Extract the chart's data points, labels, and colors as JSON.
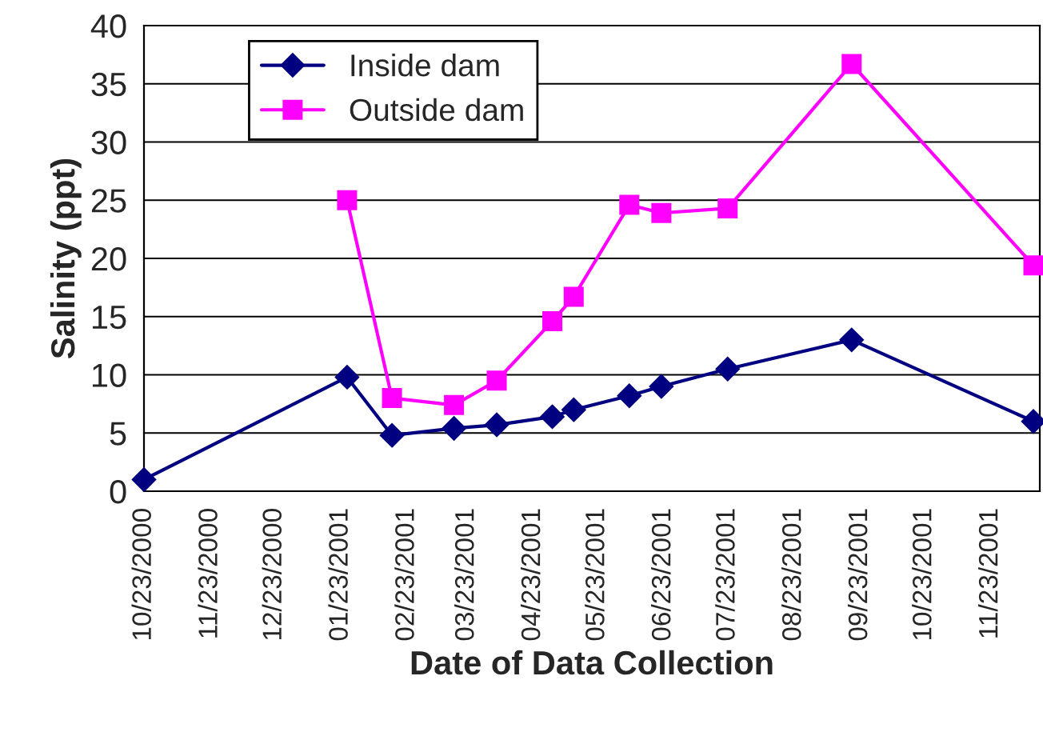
{
  "chart_data": {
    "type": "line",
    "xlabel": "Date of Data Collection",
    "ylabel": "Salinity (ppt)",
    "series": [
      {
        "name": "Inside dam",
        "color": "#000080",
        "marker": "diamond",
        "x": [
          "2000-10-23",
          "2001-01-26",
          "2001-02-16",
          "2001-03-17",
          "2001-04-06",
          "2001-05-02",
          "2001-05-12",
          "2001-06-07",
          "2001-06-22",
          "2001-07-23",
          "2001-09-19",
          "2001-12-13"
        ],
        "values": [
          1.0,
          9.8,
          4.8,
          5.4,
          5.7,
          6.4,
          7.0,
          8.2,
          9.0,
          10.5,
          13.0,
          6.0
        ]
      },
      {
        "name": "Outside dam",
        "color": "#ff00ff",
        "marker": "square",
        "x": [
          "2001-01-26",
          "2001-02-16",
          "2001-03-17",
          "2001-04-06",
          "2001-05-02",
          "2001-05-12",
          "2001-06-07",
          "2001-06-22",
          "2001-07-23",
          "2001-09-19",
          "2001-12-13"
        ],
        "values": [
          25.0,
          8.0,
          7.4,
          9.5,
          14.6,
          16.7,
          24.6,
          23.9,
          24.3,
          36.7,
          19.4
        ]
      }
    ],
    "xlim": [
      "2000-10-23",
      "2001-12-16"
    ],
    "xticks": [
      {
        "value": "2000-10-23",
        "label": "10/23/2000"
      },
      {
        "value": "2000-11-23",
        "label": "11/23/2000"
      },
      {
        "value": "2000-12-23",
        "label": "12/23/2000"
      },
      {
        "value": "2001-01-23",
        "label": "01/23/2001"
      },
      {
        "value": "2001-02-23",
        "label": "02/23/2001"
      },
      {
        "value": "2001-03-23",
        "label": "03/23/2001"
      },
      {
        "value": "2001-04-23",
        "label": "04/23/2001"
      },
      {
        "value": "2001-05-23",
        "label": "05/23/2001"
      },
      {
        "value": "2001-06-23",
        "label": "06/23/2001"
      },
      {
        "value": "2001-07-23",
        "label": "07/23/2001"
      },
      {
        "value": "2001-08-23",
        "label": "08/23/2001"
      },
      {
        "value": "2001-09-23",
        "label": "09/23/2001"
      },
      {
        "value": "2001-10-23",
        "label": "10/23/2001"
      },
      {
        "value": "2001-11-23",
        "label": "11/23/2001"
      }
    ],
    "ylim": [
      0,
      40
    ],
    "yticks": [
      0,
      5,
      10,
      15,
      20,
      25,
      30,
      35,
      40
    ],
    "grid": "y",
    "legend": "top left",
    "line_style": "solid"
  }
}
